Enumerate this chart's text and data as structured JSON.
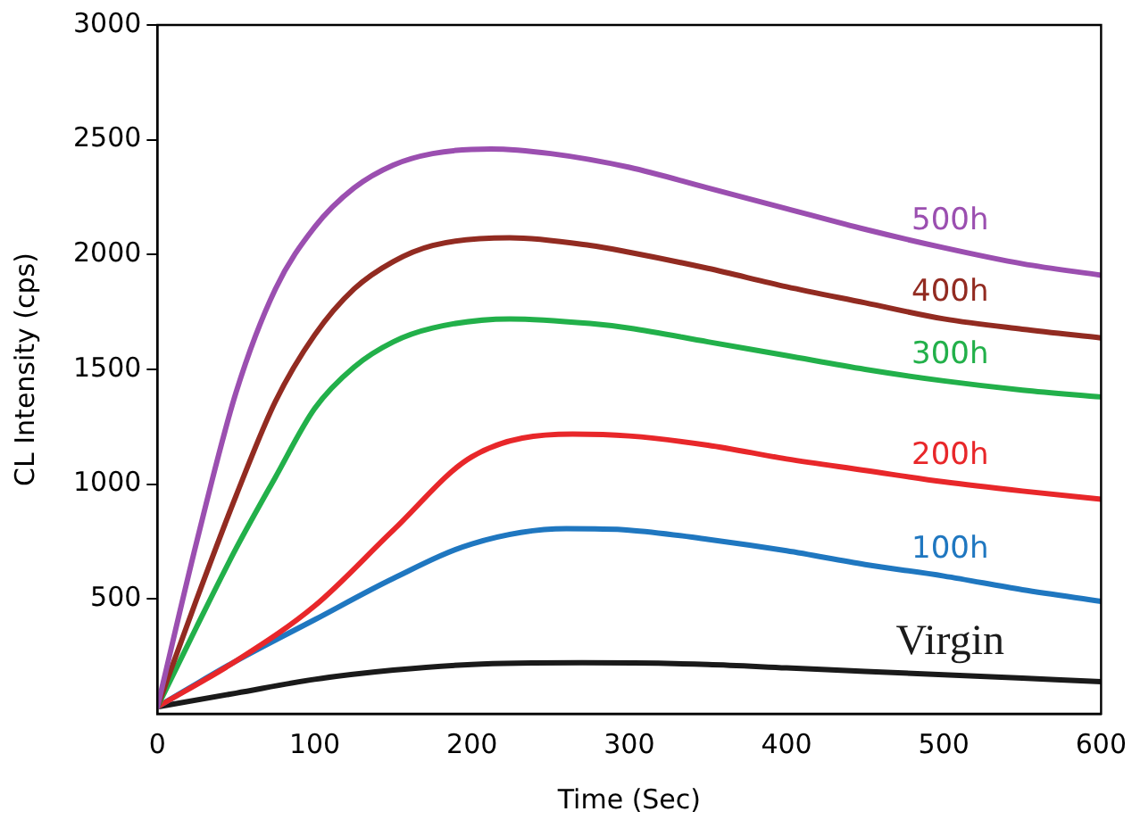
{
  "chart_data": {
    "type": "line",
    "xlabel": "Time (Sec)",
    "ylabel": "CL Intensity (cps)",
    "xlim": [
      0,
      600
    ],
    "xticks": [
      0,
      100,
      200,
      300,
      400,
      500,
      600
    ],
    "ylim": [
      0,
      3000
    ],
    "yticks": [
      500,
      1000,
      1500,
      2000,
      2500,
      3000
    ],
    "grid": false,
    "legend": false,
    "marker": "none",
    "line_style": "solid",
    "series": [
      {
        "name": "500h",
        "color": "#9b4fb0",
        "x": [
          0,
          25,
          50,
          75,
          100,
          125,
          150,
          175,
          212,
          250,
          300,
          350,
          400,
          450,
          500,
          550,
          600
        ],
        "values": [
          30,
          750,
          1400,
          1850,
          2120,
          2290,
          2390,
          2440,
          2460,
          2440,
          2380,
          2290,
          2200,
          2110,
          2030,
          1960,
          1910
        ]
      },
      {
        "name": "400h",
        "color": "#922b21",
        "x": [
          0,
          25,
          50,
          75,
          100,
          125,
          150,
          175,
          224,
          275,
          300,
          350,
          400,
          450,
          500,
          550,
          600
        ],
        "values": [
          30,
          500,
          950,
          1360,
          1650,
          1850,
          1970,
          2040,
          2073,
          2040,
          2010,
          1940,
          1860,
          1790,
          1720,
          1675,
          1637
        ]
      },
      {
        "name": "300h",
        "color": "#22b04a",
        "x": [
          0,
          25,
          50,
          75,
          100,
          125,
          150,
          175,
          224,
          275,
          300,
          350,
          400,
          450,
          500,
          550,
          600
        ],
        "values": [
          30,
          380,
          720,
          1030,
          1330,
          1510,
          1620,
          1680,
          1720,
          1700,
          1680,
          1620,
          1560,
          1500,
          1450,
          1410,
          1380
        ]
      },
      {
        "name": "200h",
        "color": "#e8272a",
        "x": [
          0,
          50,
          100,
          150,
          200,
          264,
          300,
          350,
          400,
          450,
          500,
          550,
          600
        ],
        "values": [
          30,
          230,
          470,
          800,
          1120,
          1218,
          1210,
          1170,
          1110,
          1060,
          1010,
          970,
          935
        ]
      },
      {
        "name": "100h",
        "color": "#1f77c0",
        "x": [
          0,
          50,
          100,
          150,
          200,
          260,
          300,
          350,
          400,
          450,
          500,
          550,
          600
        ],
        "values": [
          30,
          230,
          410,
          590,
          740,
          806,
          800,
          760,
          710,
          650,
          600,
          540,
          490
        ]
      },
      {
        "name": "Virgin",
        "color": "#1a1a1a",
        "x": [
          0,
          50,
          100,
          150,
          200,
          270,
          350,
          400,
          450,
          500,
          550,
          600
        ],
        "values": [
          30,
          90,
          150,
          190,
          215,
          222,
          215,
          200,
          185,
          170,
          155,
          140
        ]
      }
    ]
  }
}
